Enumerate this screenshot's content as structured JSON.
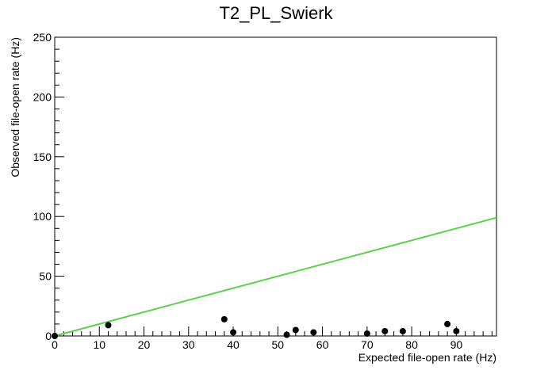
{
  "chart_data": {
    "type": "scatter",
    "title": "T2_PL_Swierk",
    "xlabel": "Expected file-open rate (Hz)",
    "ylabel": "Observed file-open rate (Hz)",
    "xlim": [
      0,
      99
    ],
    "ylim": [
      0,
      250
    ],
    "x_ticks": [
      0,
      10,
      20,
      30,
      40,
      50,
      60,
      70,
      80,
      90
    ],
    "y_ticks": [
      0,
      50,
      100,
      150,
      200,
      250
    ],
    "grid": false,
    "legend": "none",
    "series": [
      {
        "marker": "filled-circle",
        "color": "#000000",
        "points": [
          {
            "x": 0,
            "y": 0
          },
          {
            "x": 12,
            "y": 9
          },
          {
            "x": 38,
            "y": 14
          },
          {
            "x": 40,
            "y": 3
          },
          {
            "x": 52,
            "y": 1
          },
          {
            "x": 54,
            "y": 5
          },
          {
            "x": 58,
            "y": 3
          },
          {
            "x": 70,
            "y": 2
          },
          {
            "x": 74,
            "y": 4
          },
          {
            "x": 78,
            "y": 4
          },
          {
            "x": 88,
            "y": 10
          },
          {
            "x": 90,
            "y": 4
          }
        ]
      }
    ],
    "reference_line": {
      "color": "#5fcf4f",
      "points": [
        {
          "x": 0,
          "y": 0
        },
        {
          "x": 99,
          "y": 99
        }
      ]
    }
  }
}
